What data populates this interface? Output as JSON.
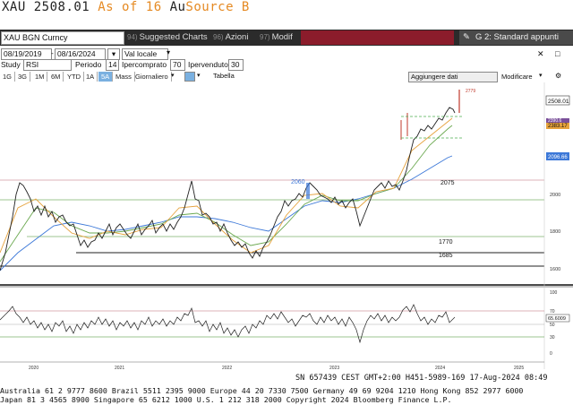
{
  "title": {
    "ticker": "XAU",
    "price": "2508.01",
    "as_of": "As of 16",
    "au": "Au",
    "source": "Source B"
  },
  "toolbar": {
    "security": "XAU BGN Curncy",
    "btn1": {
      "num": "94)",
      "label": "Suggested Charts"
    },
    "btn2": {
      "num": "96)",
      "label": "Azioni"
    },
    "btn3": {
      "num": "97)",
      "label": "Modif"
    },
    "g2": "G 2: Standard appunti"
  },
  "controls": {
    "start_date": "08/19/2019",
    "end_date": "08/16/2024",
    "currency": "Val locale",
    "studies_label": "Study",
    "study_value": "RSI",
    "period_label": "Periodo",
    "period_value": "14",
    "overbought_label": "Ipercomprato",
    "overbought_value": "70",
    "oversold_label": "Ipervenduto",
    "oversold_value": "30",
    "add_data": "Aggiungere dati",
    "modify": "Modificare"
  },
  "tabs": [
    "1G",
    "3G",
    "1M",
    "6M",
    "YTD",
    "1A",
    "5A",
    "Mass",
    "Giornaliero"
  ],
  "active_tab": "5A",
  "table_label": "Tabella",
  "chart": {
    "price_labels": [
      "2508.01",
      "2383.17",
      "2390.6",
      "2096.66",
      "2000",
      "1800",
      "1600",
      "2779"
    ],
    "annotations": [
      "2060",
      "2075",
      "1770",
      "1685"
    ],
    "rsi_labels": [
      "100",
      "70",
      "50",
      "30",
      "0",
      "65.6009"
    ],
    "x_labels": [
      "2020",
      "2021",
      "2022",
      "2023",
      "2024",
      "2025"
    ],
    "colors": {
      "price": "#222",
      "ma_green": "#6aa84f",
      "ma_blue": "#3c78d8",
      "ma_orange": "#e6a23c",
      "red": "#c0392b"
    }
  },
  "status": "SN 657439 CEST GMT+2:00 H451-5989-169 17-Aug-2024 08:49",
  "footer1": "Australia 61 2 9777 8600 Brazil 5511 2395 9000 Europe 44 20 7330 7500 Germany 49 69 9204 1210 Hong Kong 852 2977 6000",
  "footer2": "Japan 81 3 4565 8900           Singapore 65 6212 1000      U.S. 1 212 318 2000          Copyright 2024 Bloomberg Finance L.P."
}
